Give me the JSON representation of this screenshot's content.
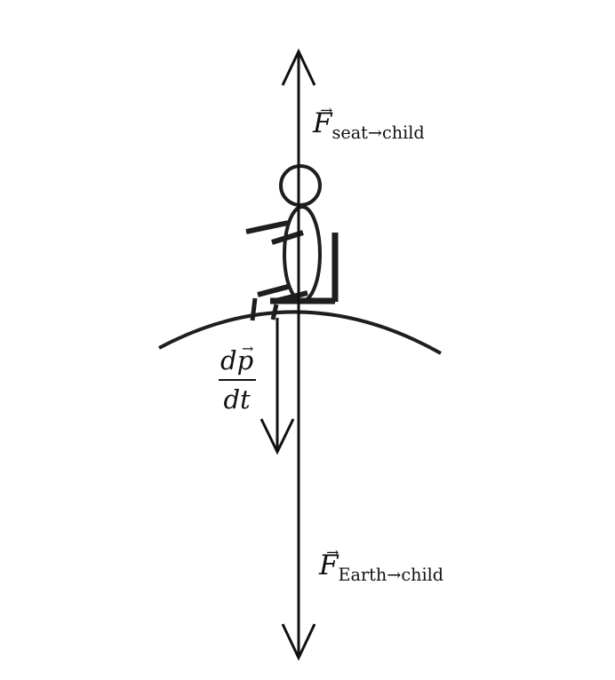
{
  "labels": {
    "force_seat_main": "F",
    "force_seat_sub": "seat→child",
    "force_earth_main": "F",
    "force_earth_sub": "Earth→child",
    "momentum_numerator": "dp",
    "momentum_denominator": "dt"
  },
  "vector_mark": "⃗",
  "colors": {
    "line": "#111111",
    "figure": "#1e1e1e"
  }
}
